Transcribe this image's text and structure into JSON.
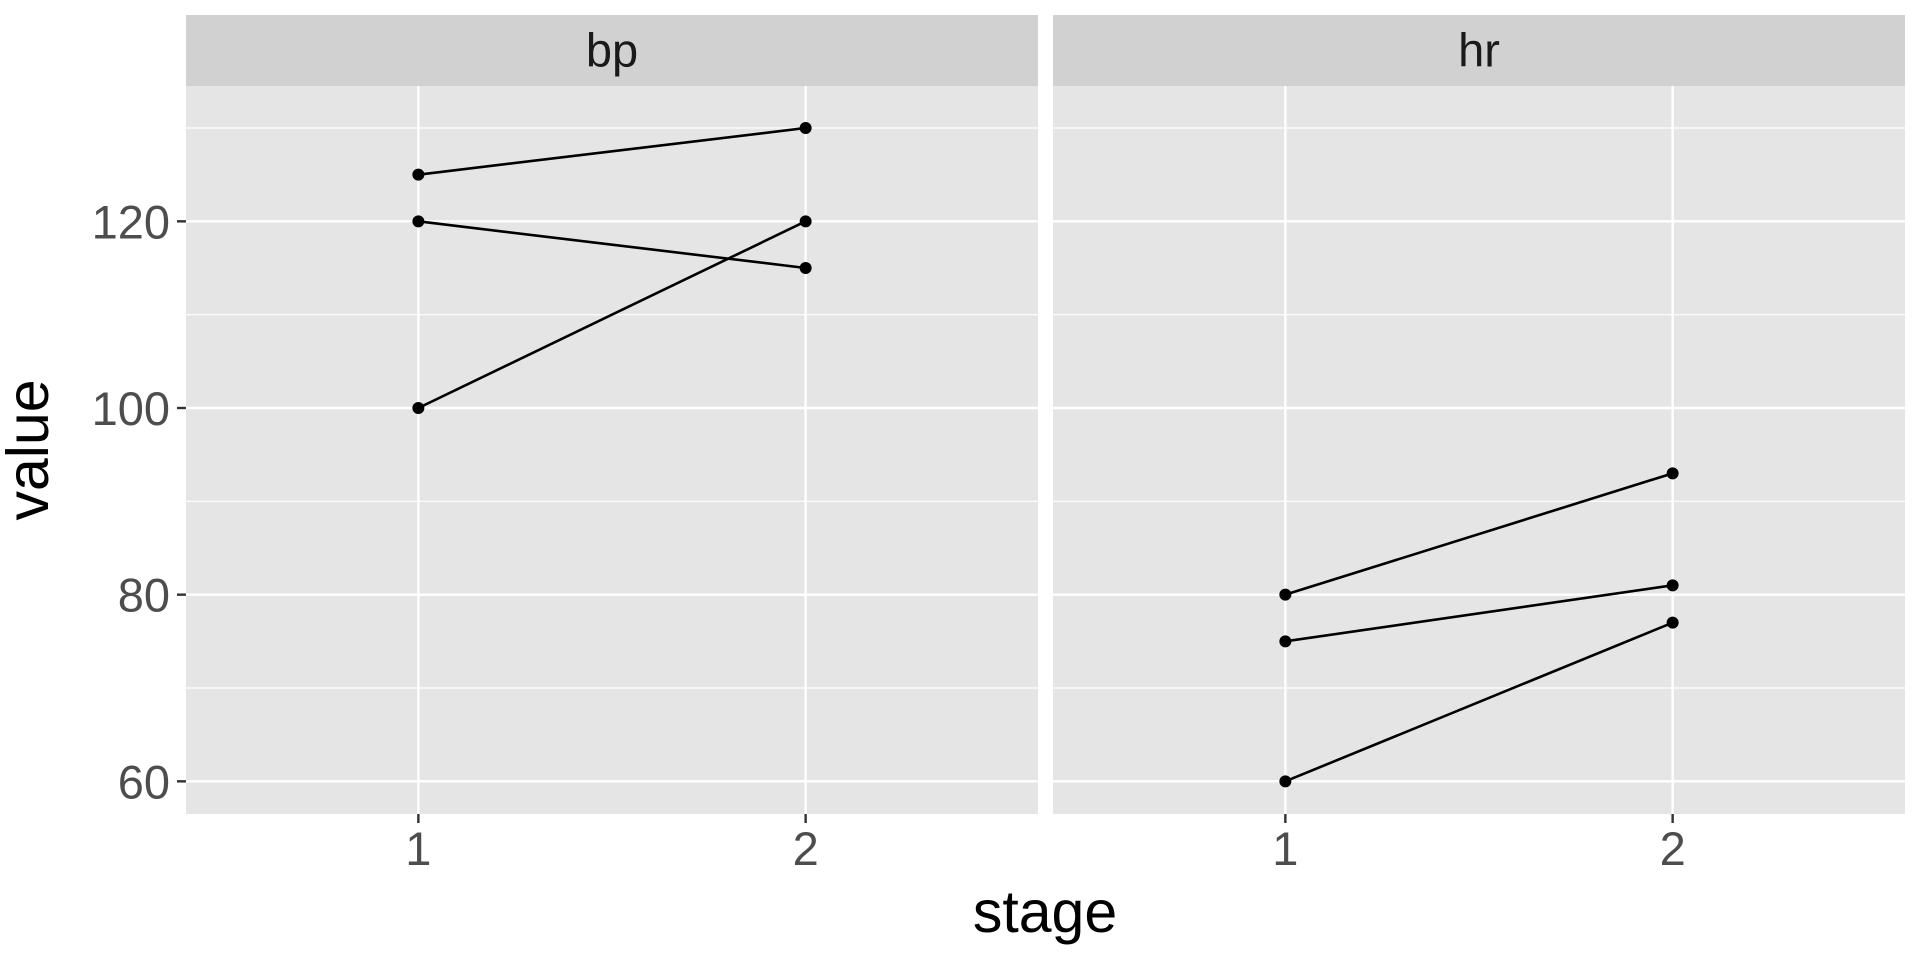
{
  "chart_data": {
    "type": "line",
    "xlabel": "stage",
    "ylabel": "value",
    "x": [
      1,
      2
    ],
    "x_tick_labels": [
      "1",
      "2"
    ],
    "xlim": [
      0.4,
      2.6
    ],
    "ylim": [
      56.5,
      134.5
    ],
    "y_major_ticks": [
      60,
      80,
      100,
      120
    ],
    "y_tick_labels": [
      "60",
      "80",
      "100",
      "120"
    ],
    "y_minor_ticks": [
      70,
      90,
      110,
      130
    ],
    "grid": true,
    "legend": "none",
    "colors": {
      "panel_background": "#e5e5e5",
      "strip_background": "#d1d1d1",
      "grid": "#ffffff",
      "line": "#000000"
    },
    "facets": [
      {
        "strip_label": "bp",
        "series": [
          {
            "values": [
              125,
              130
            ]
          },
          {
            "values": [
              120,
              115
            ]
          },
          {
            "values": [
              100,
              120
            ]
          }
        ]
      },
      {
        "strip_label": "hr",
        "series": [
          {
            "values": [
              80,
              93
            ]
          },
          {
            "values": [
              75,
              81
            ]
          },
          {
            "values": [
              60,
              77
            ]
          }
        ]
      }
    ]
  }
}
